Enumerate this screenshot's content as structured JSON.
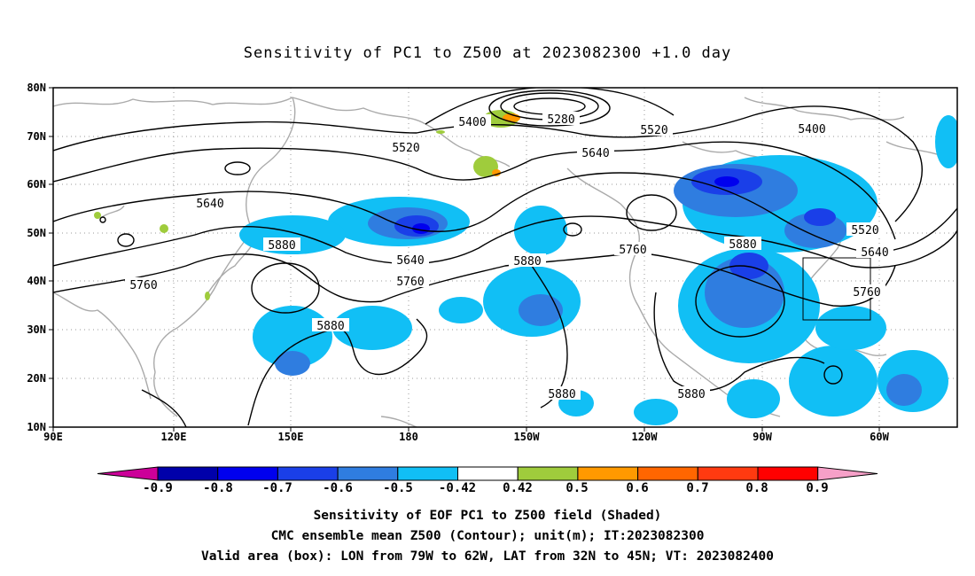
{
  "title": "Sensitivity of PC1 to Z500 at 2023082300 +1.0 day",
  "lat_labels": [
    "80N",
    "70N",
    "60N",
    "50N",
    "40N",
    "30N",
    "20N",
    "10N"
  ],
  "lon_labels": [
    "90E",
    "120E",
    "150E",
    "180",
    "150W",
    "120W",
    "90W",
    "60W"
  ],
  "contour_labels": [
    {
      "text": "5400"
    },
    {
      "text": "5280"
    },
    {
      "text": "5520"
    },
    {
      "text": "5400"
    },
    {
      "text": "5520"
    },
    {
      "text": "5640"
    },
    {
      "text": "5640"
    },
    {
      "text": "5880"
    },
    {
      "text": "5760"
    },
    {
      "text": "5640"
    },
    {
      "text": "5760"
    },
    {
      "text": "5880"
    },
    {
      "text": "5760"
    },
    {
      "text": "5880"
    },
    {
      "text": "5520"
    },
    {
      "text": "5640"
    },
    {
      "text": "5760"
    },
    {
      "text": "5880"
    },
    {
      "text": "5880"
    },
    {
      "text": "5880"
    }
  ],
  "colorbar": {
    "labels": [
      "-0.9",
      "-0.8",
      "-0.7",
      "-0.6",
      "-0.5",
      "-0.42",
      "0.42",
      "0.5",
      "0.6",
      "0.7",
      "0.8",
      "0.9"
    ],
    "colors": [
      "#0000aa",
      "#0000ee",
      "#1a3fe8",
      "#2f7de0",
      "#11bff5",
      "#ffffff",
      "#9fcc3c",
      "#ff9900",
      "#ff6600",
      "#ff3a10",
      "#ff0000"
    ],
    "low_arrow_color": "#cc0099",
    "high_arrow_color": "#f6a0c8"
  },
  "captions": [
    "Sensitivity of EOF PC1 to Z500 field (Shaded)",
    "CMC ensemble mean Z500 (Contour); unit(m); IT:2023082300",
    "Valid area (box): LON from 79W to 62W, LAT from 32N to 45N; VT: 2023082400"
  ]
}
